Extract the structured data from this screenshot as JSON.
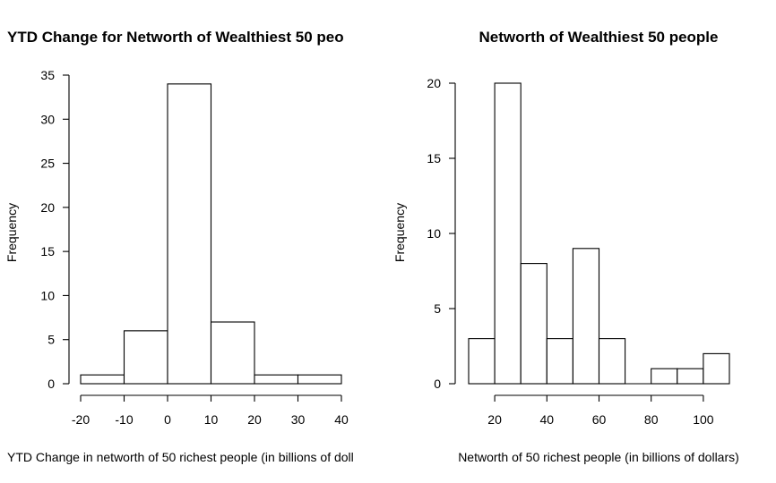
{
  "chart_data": [
    {
      "type": "bar",
      "subtype": "histogram",
      "title": "YTD Change for Networth of Wealthiest 50 peo",
      "xlabel": "YTD Change in networth of 50 richest people (in billions of doll",
      "ylabel": "Frequency",
      "bins": [
        {
          "from": -20,
          "to": -10,
          "count": 1
        },
        {
          "from": -10,
          "to": 0,
          "count": 6
        },
        {
          "from": 0,
          "to": 10,
          "count": 34
        },
        {
          "from": 10,
          "to": 20,
          "count": 7
        },
        {
          "from": 20,
          "to": 30,
          "count": 1
        },
        {
          "from": 30,
          "to": 40,
          "count": 1
        }
      ],
      "xticks": [
        "-20",
        "-10",
        "0",
        "10",
        "20",
        "30",
        "40"
      ],
      "yticks": [
        "0",
        "5",
        "10",
        "15",
        "20",
        "25",
        "30",
        "35"
      ],
      "xlim": [
        -20,
        40
      ],
      "ylim": [
        0,
        35
      ],
      "grid": false
    },
    {
      "type": "bar",
      "subtype": "histogram",
      "title": "Networth of Wealthiest 50 people",
      "xlabel": "Networth of 50 richest people (in billions of dollars)",
      "ylabel": "Frequency",
      "bins": [
        {
          "from": 10,
          "to": 20,
          "count": 3
        },
        {
          "from": 20,
          "to": 30,
          "count": 20
        },
        {
          "from": 30,
          "to": 40,
          "count": 8
        },
        {
          "from": 40,
          "to": 50,
          "count": 3
        },
        {
          "from": 50,
          "to": 60,
          "count": 9
        },
        {
          "from": 60,
          "to": 70,
          "count": 3
        },
        {
          "from": 70,
          "to": 80,
          "count": 0
        },
        {
          "from": 80,
          "to": 90,
          "count": 1
        },
        {
          "from": 90,
          "to": 100,
          "count": 1
        },
        {
          "from": 100,
          "to": 110,
          "count": 2
        }
      ],
      "xticks": [
        "20",
        "40",
        "60",
        "80",
        "100"
      ],
      "yticks": [
        "0",
        "5",
        "10",
        "15",
        "20"
      ],
      "xlim": [
        10,
        110
      ],
      "ylim": [
        0,
        20
      ],
      "grid": false
    }
  ]
}
